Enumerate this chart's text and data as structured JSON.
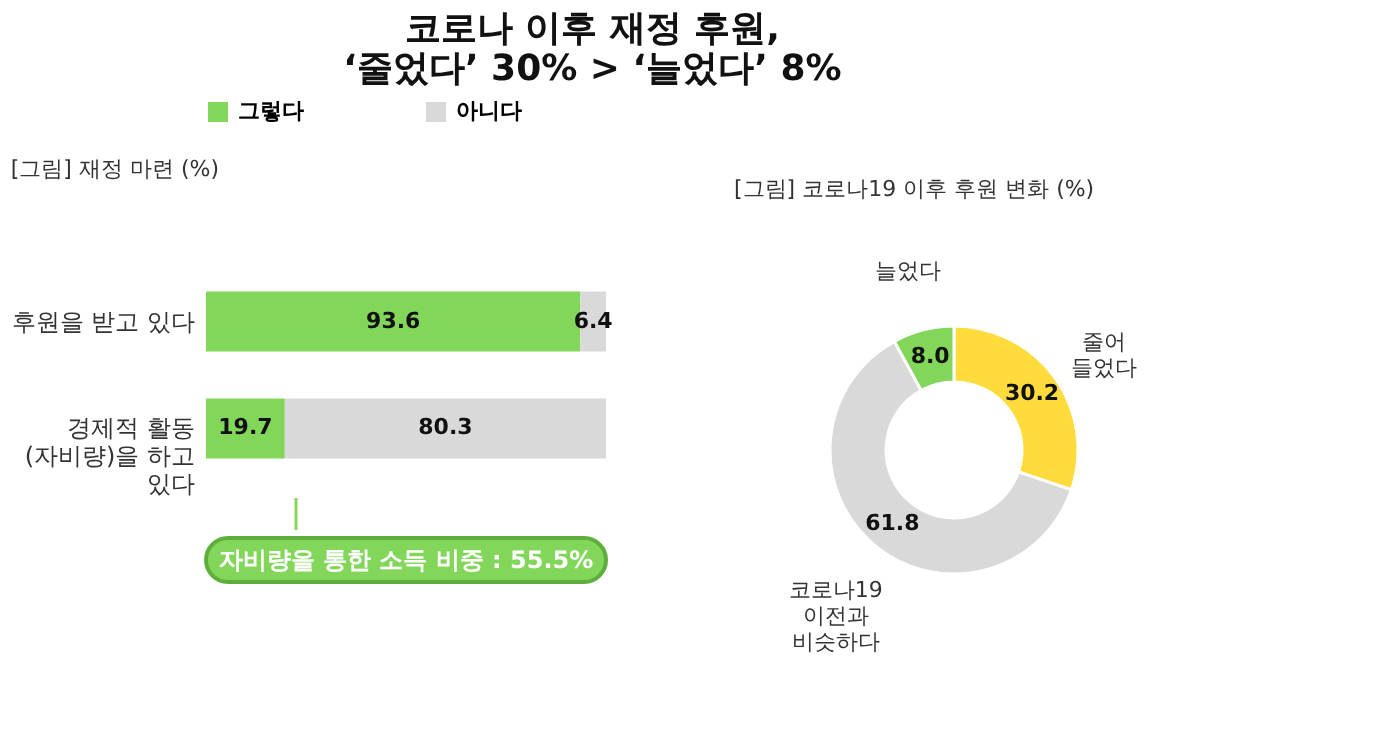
{
  "chart_data": [
    {
      "type": "bar",
      "title": "코로나 이후 재정 후원,\n‘줄었다’ 30% > ‘늘었다’ 8%",
      "subtitle": "[그림] 재정 마련",
      "orientation": "horizontal",
      "stacked": true,
      "xlim": [
        0,
        100
      ],
      "tick_labels": "y",
      "legend": "top",
      "data_labels": true,
      "categories": [
        "후원을 받고 있다",
        "경제적 활동\n(자비량)을 하고\n있다"
      ],
      "series": [
        {
          "name": "그렇다",
          "color": "#82d65a",
          "values": [
            93.6,
            19.7
          ]
        },
        {
          "name": "아니다",
          "color": "#d9d9d9",
          "values": [
            6.4,
            80.3
          ]
        }
      ],
      "annotations": [
        "(%)",
        "자비량을 통한 소득 비중 : 55.5%"
      ]
    },
    {
      "type": "donut",
      "title": "[그림] 코로나19 이후 후원 변화",
      "legend": false,
      "value_labels": [
        "30.2",
        "61.8",
        "8.0"
      ],
      "categories": [
        "줄어\n들었다",
        "코로나19\n이전과\n비슷하다",
        "늘었다"
      ],
      "values": [
        30.2,
        61.8,
        8.0
      ],
      "colors": [
        "#ffdb3c",
        "#d9d9d9",
        "#82d65a"
      ],
      "annotations": [
        "(%)"
      ]
    }
  ]
}
